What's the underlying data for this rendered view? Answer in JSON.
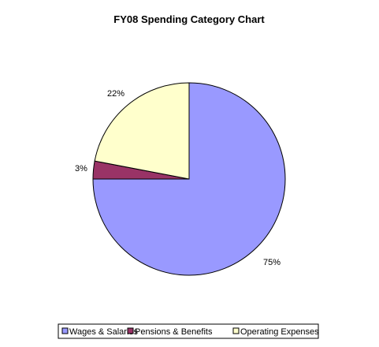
{
  "chart_data": {
    "type": "pie",
    "title": "FY08 Spending Category Chart",
    "slices": [
      {
        "name": "Wages & Salaries",
        "value": 75,
        "label": "75%",
        "color": "#9999ff"
      },
      {
        "name": "Pensions & Benefits",
        "value": 3,
        "label": "3%",
        "color": "#993366"
      },
      {
        "name": "Operating Expenses",
        "value": 22,
        "label": "22%",
        "color": "#ffffcc"
      }
    ],
    "legend_position": "bottom",
    "start_angle_deg": 0,
    "direction": "clockwise"
  }
}
